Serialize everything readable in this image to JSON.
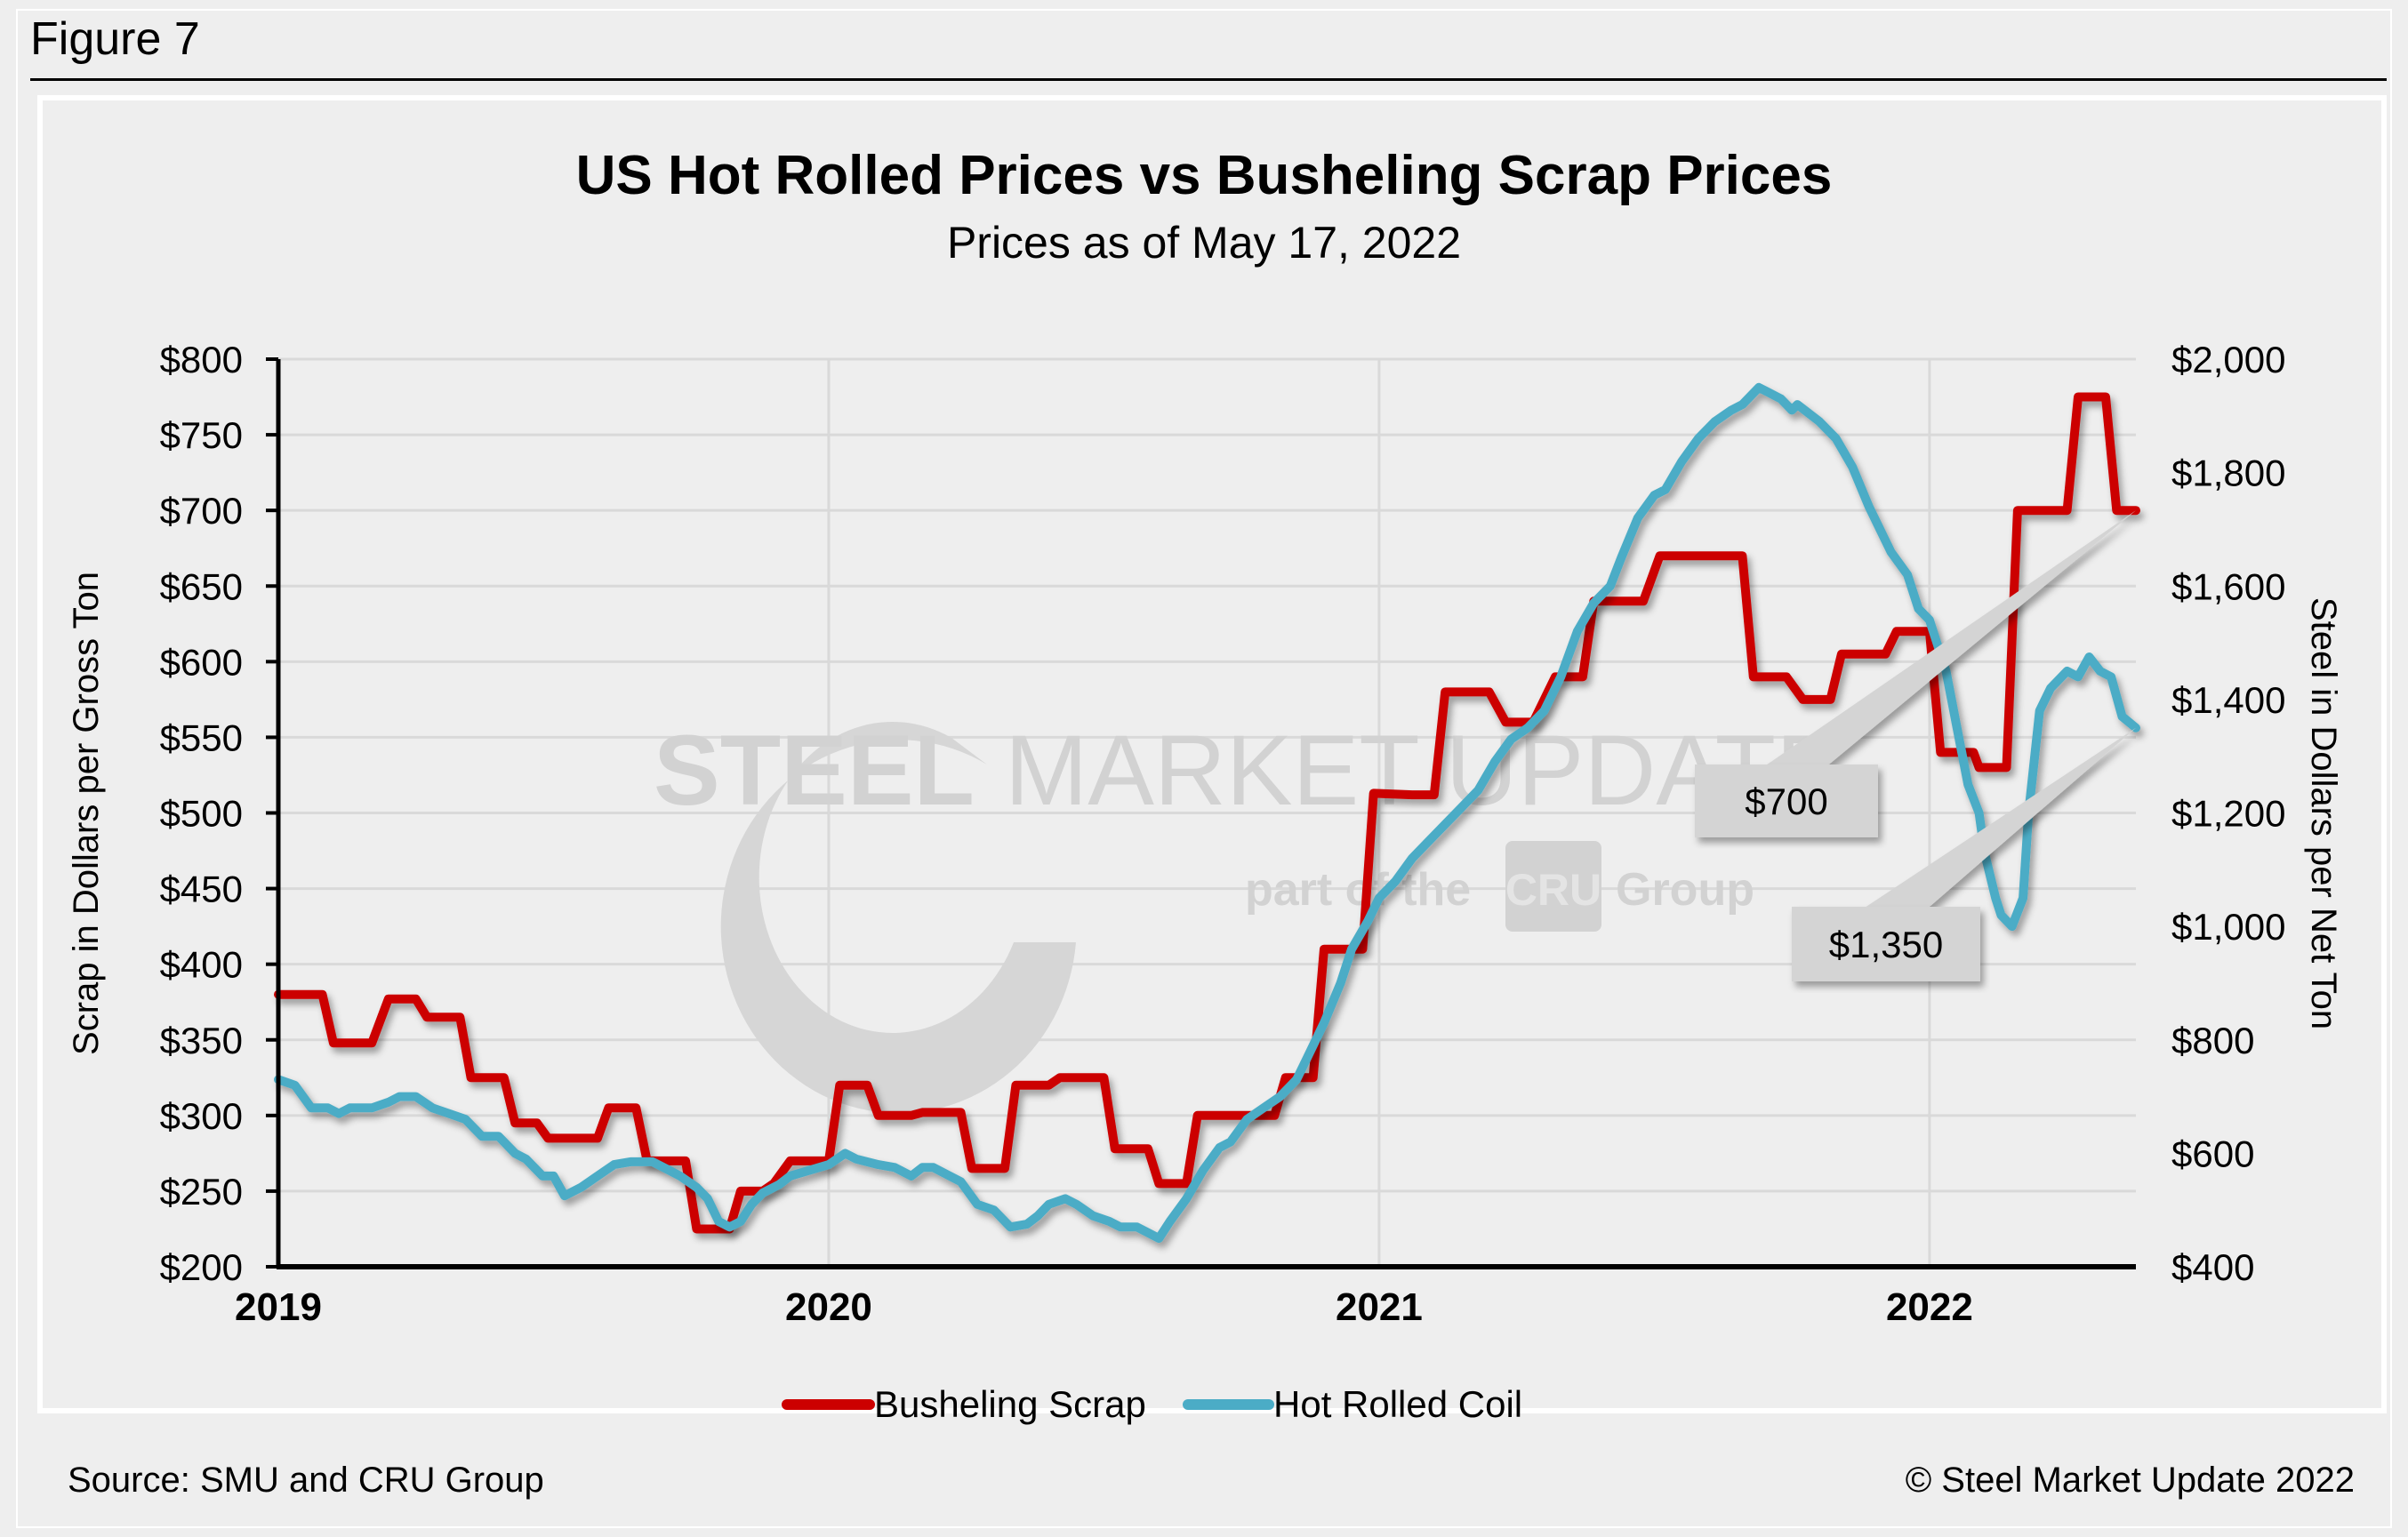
{
  "figure_label": "Figure 7",
  "source": "Source: SMU and CRU Group",
  "copyright": "© Steel Market Update 2022",
  "watermark": {
    "main_bold": "STEEL",
    "main_light": "MARKET UPDATE",
    "sub_prefix": "part of the",
    "sub_badge": "CRU",
    "sub_suffix": "Group"
  },
  "colors": {
    "scrap": "#cc0000",
    "hrc": "#4bacc6",
    "grid": "#d9d9d9",
    "callout": "#d4d4d4"
  },
  "chart_data": {
    "type": "line",
    "title": "US Hot Rolled Prices vs Busheling Scrap Prices",
    "subtitle": "Prices as of May 17, 2022",
    "xlabel": "",
    "ylabel": "Scrap in Dollars per Gross Ton",
    "y2label": "Steel in Dollars per Net Ton",
    "xlim": [
      2019.0,
      2022.375
    ],
    "ylim": [
      200,
      800
    ],
    "y2lim": [
      400,
      2000
    ],
    "x_ticks": [
      2019,
      2020,
      2021,
      2022
    ],
    "x_tick_labels": [
      "2019",
      "2020",
      "2021",
      "2022"
    ],
    "y_ticks": [
      200,
      250,
      300,
      350,
      400,
      450,
      500,
      550,
      600,
      650,
      700,
      750,
      800
    ],
    "y_tick_labels": [
      "$200",
      "$250",
      "$300",
      "$350",
      "$400",
      "$450",
      "$500",
      "$550",
      "$600",
      "$650",
      "$700",
      "$750",
      "$800"
    ],
    "y2_ticks": [
      400,
      600,
      800,
      1000,
      1200,
      1400,
      1600,
      1800,
      2000
    ],
    "y2_tick_labels": [
      "$400",
      "$600",
      "$800",
      "$1,000",
      "$1,200",
      "$1,400",
      "$1,600",
      "$1,800",
      "$2,000"
    ],
    "grid": true,
    "legend_position": "bottom-center",
    "series": [
      {
        "name": "Busheling Scrap",
        "axis": "left",
        "x": [
          2019.0,
          2019.08,
          2019.1,
          2019.17,
          2019.2,
          2019.25,
          2019.27,
          2019.33,
          2019.35,
          2019.41,
          2019.43,
          2019.47,
          2019.49,
          2019.58,
          2019.6,
          2019.65,
          2019.67,
          2019.74,
          2019.76,
          2019.82,
          2019.84,
          2019.88,
          2019.9,
          2019.93,
          2020.0,
          2020.02,
          2020.07,
          2020.09,
          2020.15,
          2020.17,
          2020.24,
          2020.26,
          2020.32,
          2020.34,
          2020.4,
          2020.42,
          2020.5,
          2020.52,
          2020.58,
          2020.6,
          2020.65,
          2020.67,
          2020.81,
          2020.83,
          2020.88,
          2020.9,
          2020.97,
          2020.99,
          2021.06,
          2021.1,
          2021.12,
          2021.2,
          2021.23,
          2021.28,
          2021.32,
          2021.37,
          2021.39,
          2021.48,
          2021.51,
          2021.66,
          2021.68,
          2021.74,
          2021.77,
          2021.82,
          2021.84,
          2021.92,
          2021.94,
          2022.0,
          2022.02,
          2022.08,
          2022.09,
          2022.14,
          2022.16,
          2022.25,
          2022.27,
          2022.32,
          2022.34,
          2022.375
        ],
        "values": [
          380,
          380,
          348,
          348,
          377,
          377,
          365,
          365,
          325,
          325,
          295,
          295,
          285,
          285,
          305,
          305,
          270,
          270,
          225,
          225,
          250,
          250,
          255,
          270,
          270,
          320,
          320,
          300,
          300,
          302,
          302,
          265,
          265,
          320,
          320,
          325,
          325,
          278,
          278,
          255,
          255,
          300,
          300,
          325,
          325,
          410,
          410,
          513,
          512,
          512,
          580,
          580,
          560,
          560,
          590,
          590,
          640,
          640,
          670,
          670,
          590,
          590,
          575,
          575,
          605,
          605,
          620,
          620,
          540,
          540,
          530,
          530,
          700,
          700,
          775,
          775,
          700,
          700
        ]
      },
      {
        "name": "Hot Rolled Coil",
        "axis": "right",
        "x": [
          2019.0,
          2019.03,
          2019.06,
          2019.09,
          2019.11,
          2019.13,
          2019.17,
          2019.2,
          2019.22,
          2019.25,
          2019.28,
          2019.31,
          2019.34,
          2019.37,
          2019.4,
          2019.43,
          2019.45,
          2019.48,
          2019.5,
          2019.52,
          2019.55,
          2019.58,
          2019.61,
          2019.64,
          2019.68,
          2019.71,
          2019.73,
          2019.76,
          2019.78,
          2019.8,
          2019.82,
          2019.84,
          2019.86,
          2019.88,
          2019.91,
          2019.93,
          2020.0,
          2020.03,
          2020.05,
          2020.09,
          2020.12,
          2020.15,
          2020.17,
          2020.19,
          2020.22,
          2020.24,
          2020.27,
          2020.3,
          2020.33,
          2020.36,
          2020.38,
          2020.4,
          2020.43,
          2020.45,
          2020.48,
          2020.51,
          2020.53,
          2020.56,
          2020.58,
          2020.6,
          2020.62,
          2020.65,
          2020.68,
          2020.71,
          2020.73,
          2020.76,
          2020.79,
          2020.82,
          2020.85,
          2020.87,
          2020.9,
          2020.93,
          2020.95,
          2020.98,
          2021.0,
          2021.03,
          2021.06,
          2021.09,
          2021.12,
          2021.15,
          2021.18,
          2021.21,
          2021.24,
          2021.27,
          2021.3,
          2021.33,
          2021.36,
          2021.39,
          2021.42,
          2021.44,
          2021.47,
          2021.5,
          2021.52,
          2021.55,
          2021.58,
          2021.61,
          2021.64,
          2021.66,
          2021.69,
          2021.7,
          2021.73,
          2021.75,
          2021.76,
          2021.8,
          2021.83,
          2021.86,
          2021.89,
          2021.91,
          2021.93,
          2021.96,
          2021.98,
          2022.0,
          2022.03,
          2022.05,
          2022.07,
          2022.09,
          2022.1,
          2022.12,
          2022.13,
          2022.15,
          2022.17,
          2022.18,
          2022.2,
          2022.22,
          2022.25,
          2022.27,
          2022.29,
          2022.31,
          2022.33,
          2022.35,
          2022.375
        ],
        "values": [
          730,
          720,
          680,
          680,
          670,
          680,
          680,
          690,
          700,
          700,
          680,
          670,
          660,
          630,
          630,
          600,
          590,
          560,
          560,
          525,
          540,
          560,
          580,
          585,
          585,
          570,
          560,
          540,
          520,
          480,
          470,
          480,
          510,
          530,
          545,
          560,
          580,
          600,
          590,
          580,
          575,
          560,
          575,
          575,
          560,
          550,
          510,
          500,
          470,
          475,
          490,
          510,
          520,
          510,
          490,
          480,
          470,
          470,
          460,
          450,
          480,
          520,
          570,
          610,
          620,
          660,
          680,
          700,
          730,
          770,
          830,
          900,
          960,
          1010,
          1050,
          1080,
          1120,
          1150,
          1180,
          1210,
          1240,
          1290,
          1330,
          1350,
          1380,
          1440,
          1520,
          1570,
          1600,
          1650,
          1720,
          1760,
          1770,
          1820,
          1860,
          1890,
          1910,
          1920,
          1950,
          1945,
          1930,
          1910,
          1920,
          1890,
          1860,
          1810,
          1740,
          1700,
          1660,
          1620,
          1560,
          1540,
          1450,
          1350,
          1250,
          1200,
          1130,
          1050,
          1020,
          1000,
          1050,
          1200,
          1380,
          1420,
          1450,
          1440,
          1475,
          1450,
          1440,
          1370,
          1350
        ]
      }
    ],
    "annotations": [
      {
        "text": "$700",
        "series": "Busheling Scrap",
        "value": 700
      },
      {
        "text": "$1,350",
        "series": "Hot Rolled Coil",
        "value": 1350
      }
    ]
  }
}
